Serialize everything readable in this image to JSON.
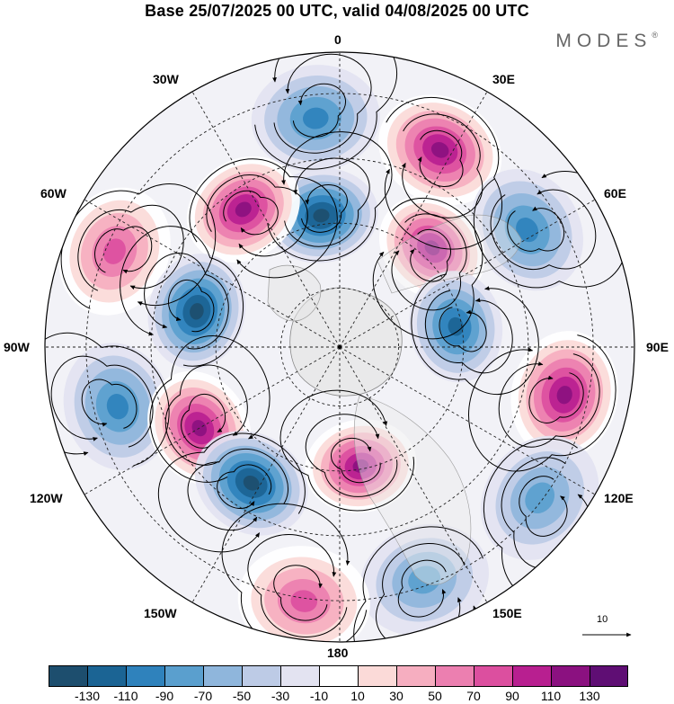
{
  "title": "Base 25/07/2025 00 UTC, valid 04/08/2025 00 UTC",
  "brand": {
    "name": "MODES",
    "mark": "®"
  },
  "longitude_labels": {
    "lon_0": "0",
    "lon_30e": "30E",
    "lon_60e": "60E",
    "lon_90e": "90E",
    "lon_120e": "120E",
    "lon_150e": "150E",
    "lon_180": "180",
    "lon_150w": "150W",
    "lon_120w": "120W",
    "lon_90w": "90W",
    "lon_60w": "60W",
    "lon_30w": "30W"
  },
  "reference_vector": {
    "label": "10"
  },
  "colorbar": {
    "colors": [
      "#1d4e6e",
      "#1b6494",
      "#2f82bc",
      "#5a9fce",
      "#8fb6dc",
      "#bdcbe6",
      "#e3e3f1",
      "#ffffff",
      "#fbdad8",
      "#f6aec0",
      "#ec7fb0",
      "#dc4f9f",
      "#b81f90",
      "#8b1180",
      "#5f0e74"
    ],
    "labels": [
      "-130",
      "-110",
      "-90",
      "-70",
      "-50",
      "-30",
      "-10",
      "10",
      "30",
      "50",
      "70",
      "90",
      "110",
      "130"
    ]
  },
  "anomaly_centers": [
    {
      "id": "n-0",
      "lon": -6,
      "dist": 0.78,
      "sign": -1,
      "strength": 0.7
    },
    {
      "id": "p-30e",
      "lon": 27,
      "dist": 0.75,
      "sign": 1,
      "strength": 1.0
    },
    {
      "id": "n-60e",
      "lon": 58,
      "dist": 0.75,
      "sign": -1,
      "strength": 0.7
    },
    {
      "id": "n-8w",
      "lon": -8,
      "dist": 0.45,
      "sign": -1,
      "strength": 1.0
    },
    {
      "id": "p-35w",
      "lon": -35,
      "dist": 0.57,
      "sign": 1,
      "strength": 1.0
    },
    {
      "id": "p-45e",
      "lon": 43,
      "dist": 0.46,
      "sign": 1,
      "strength": 1.0
    },
    {
      "id": "p-65w",
      "lon": -67,
      "dist": 0.83,
      "sign": 1,
      "strength": 0.7
    },
    {
      "id": "n-75w",
      "lon": -76,
      "dist": 0.5,
      "sign": -1,
      "strength": 1.0
    },
    {
      "id": "n-80e",
      "lon": 80,
      "dist": 0.4,
      "sign": -1,
      "strength": 0.8
    },
    {
      "id": "p-100e",
      "lon": 102,
      "dist": 0.78,
      "sign": 1,
      "strength": 1.0
    },
    {
      "id": "n-105w",
      "lon": -105,
      "dist": 0.78,
      "sign": -1,
      "strength": 0.7
    },
    {
      "id": "p-120w",
      "lon": -120,
      "dist": 0.55,
      "sign": 1,
      "strength": 1.0
    },
    {
      "id": "n-150w",
      "lon": -147,
      "dist": 0.55,
      "sign": -1,
      "strength": 1.0
    },
    {
      "id": "p-170e",
      "lon": 170,
      "dist": 0.41,
      "sign": 1,
      "strength": 1.0
    },
    {
      "id": "n-130e",
      "lon": 127,
      "dist": 0.85,
      "sign": -1,
      "strength": 0.6
    },
    {
      "id": "n-165e",
      "lon": 160,
      "dist": 0.84,
      "sign": -1,
      "strength": 0.55
    },
    {
      "id": "p-170w",
      "lon": -172,
      "dist": 0.87,
      "sign": 1,
      "strength": 0.75
    }
  ]
}
